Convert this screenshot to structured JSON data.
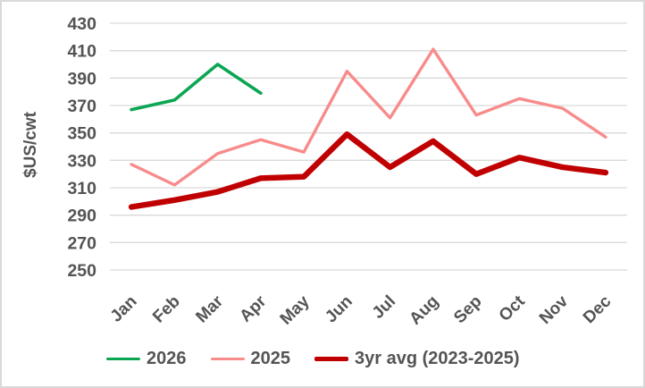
{
  "colors": {
    "background": "#ffffff",
    "frame_border": "#d9d9d9",
    "gridline": "#d9d9d9",
    "text": "#545454",
    "series_2026": "#0aa652",
    "series_2025": "#f88b8b",
    "series_3yr_avg": "#c00000"
  },
  "chart_data": {
    "type": "line",
    "title": "",
    "xlabel": "",
    "ylabel": "$US/cwt",
    "categories": [
      "Jan",
      "Feb",
      "Mar",
      "Apr",
      "May",
      "Jun",
      "Jul",
      "Aug",
      "Sep",
      "Oct",
      "Nov",
      "Dec"
    ],
    "ylim": [
      250,
      430
    ],
    "ytick_step": 20,
    "y_ticks": [
      430,
      410,
      390,
      370,
      350,
      330,
      310,
      290,
      270,
      250
    ],
    "grid": "horizontal",
    "legend_position": "bottom",
    "series": [
      {
        "name": "2026",
        "color": "#0aa652",
        "stroke_width": 3.6,
        "swatch_height": 3.5,
        "values": [
          367,
          374,
          400,
          379,
          null,
          null,
          null,
          null,
          null,
          null,
          null,
          null
        ]
      },
      {
        "name": "2025",
        "color": "#f88b8b",
        "stroke_width": 3.4,
        "swatch_height": 3.5,
        "values": [
          327,
          312,
          335,
          345,
          336,
          395,
          361,
          411,
          363,
          375,
          368,
          347
        ]
      },
      {
        "name": "3yr avg (2023-2025)",
        "color": "#c00000",
        "stroke_width": 6.4,
        "swatch_height": 5.5,
        "values": [
          296,
          301,
          307,
          317,
          318,
          349,
          325,
          344,
          320,
          332,
          325,
          321
        ]
      }
    ]
  }
}
